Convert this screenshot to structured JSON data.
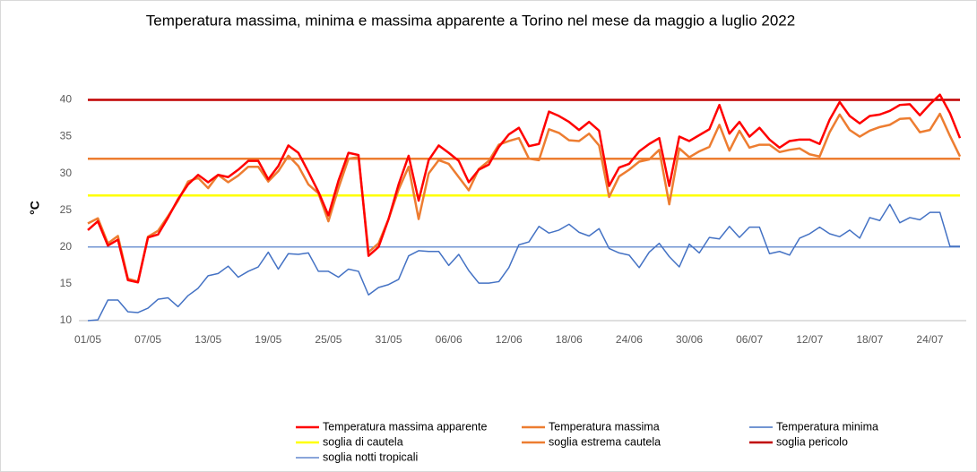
{
  "chart_data": {
    "type": "line",
    "title": "Temperatura massima, minima e massima apparente a Torino nel mese da maggio a luglio 2022",
    "y_label": "°C",
    "categories": [
      "01/05",
      null,
      null,
      null,
      null,
      null,
      "07/05",
      null,
      null,
      null,
      null,
      null,
      "13/05",
      null,
      null,
      null,
      null,
      null,
      "19/05",
      null,
      null,
      null,
      null,
      null,
      "25/05",
      null,
      null,
      null,
      null,
      null,
      "31/05",
      null,
      null,
      null,
      null,
      null,
      "06/06",
      null,
      null,
      null,
      null,
      null,
      "12/06",
      null,
      null,
      null,
      null,
      null,
      "18/06",
      null,
      null,
      null,
      null,
      null,
      "24/06",
      null,
      null,
      null,
      null,
      null,
      "30/06",
      null,
      null,
      null,
      null,
      null,
      "06/07",
      null,
      null,
      null,
      null,
      null,
      "12/07",
      null,
      null,
      null,
      null,
      null,
      "18/07",
      null,
      null,
      null,
      null,
      null,
      "24/07",
      null,
      null,
      null
    ],
    "ylim": [
      10,
      42
    ],
    "yticks": [
      10,
      15,
      20,
      25,
      30,
      35,
      40
    ],
    "grid": false,
    "series": [
      {
        "name": "Temperatura massima apparente",
        "color": "#ff0000",
        "width": 2.5,
        "values": [
          22.3,
          23.5,
          20.2,
          21,
          15.5,
          15.2,
          21.3,
          21.7,
          24,
          26.5,
          28.5,
          29.8,
          28.8,
          29.8,
          29.5,
          30.5,
          31.7,
          31.7,
          29.2,
          31,
          33.8,
          32.8,
          30.2,
          27.5,
          24.3,
          29,
          32.8,
          32.5,
          18.8,
          20,
          23.8,
          28.5,
          32.4,
          26.3,
          31.8,
          33.8,
          32.8,
          31.7,
          28.8,
          30.5,
          31.2,
          33.6,
          35.3,
          36.2,
          33.7,
          34,
          38.4,
          37.8,
          37,
          35.9,
          37,
          35.8,
          28.3,
          30.8,
          31.3,
          33,
          34,
          34.8,
          28.3,
          35,
          34.4,
          35.2,
          36,
          39.3,
          35.4,
          37,
          35,
          36.2,
          34.6,
          33.5,
          34.4,
          34.6,
          34.6,
          34,
          37.3,
          39.7,
          37.8,
          36.8,
          37.8,
          38,
          38.5,
          39.3,
          39.4,
          37.9,
          39.4,
          40.7,
          38.2,
          34.8
        ]
      },
      {
        "name": "Temperatura massima",
        "color": "#ed7d31",
        "width": 2.5,
        "values": [
          23.2,
          23.9,
          20.5,
          21.5,
          15.7,
          15.3,
          21.4,
          22.2,
          24.2,
          26.3,
          28.9,
          29.4,
          28,
          29.8,
          28.8,
          29.7,
          30.9,
          30.9,
          28.9,
          30.3,
          32.4,
          31,
          28.5,
          27.3,
          23.5,
          28,
          32,
          32.2,
          19.3,
          20.5,
          23.8,
          27.8,
          30.9,
          23.8,
          30,
          31.8,
          31.3,
          29.5,
          27.7,
          30.6,
          31.7,
          33.9,
          34.4,
          34.8,
          32,
          31.8,
          36,
          35.5,
          34.5,
          34.4,
          35.4,
          33.8,
          26.8,
          29.6,
          30.5,
          31.6,
          31.9,
          33.2,
          25.8,
          33.4,
          32.2,
          33,
          33.6,
          36.6,
          33.1,
          35.8,
          33.5,
          33.9,
          33.9,
          32.9,
          33.2,
          33.4,
          32.6,
          32.3,
          35.6,
          38,
          35.9,
          35,
          35.8,
          36.3,
          36.6,
          37.4,
          37.5,
          35.6,
          35.9,
          38.1,
          35.1,
          32.3
        ]
      },
      {
        "name": "Temperatura minima",
        "color": "#4472c4",
        "width": 1.5,
        "values": [
          10,
          10.1,
          12.8,
          12.8,
          11.2,
          11.1,
          11.7,
          12.9,
          13.1,
          11.9,
          13.4,
          14.4,
          16.1,
          16.4,
          17.4,
          15.9,
          16.7,
          17.3,
          19.3,
          17,
          19.1,
          19,
          19.2,
          16.7,
          16.7,
          15.9,
          17,
          16.7,
          13.5,
          14.5,
          14.9,
          15.6,
          18.8,
          19.5,
          19.4,
          19.4,
          17.5,
          19,
          16.8,
          15.1,
          15.1,
          15.3,
          17.2,
          20.3,
          20.7,
          22.8,
          21.9,
          22.3,
          23.1,
          22,
          21.5,
          22.5,
          19.8,
          19.2,
          18.9,
          17.2,
          19.3,
          20.5,
          18.7,
          17.3,
          20.4,
          19.2,
          21.3,
          21.1,
          22.8,
          21.3,
          22.7,
          22.7,
          19.1,
          19.4,
          18.9,
          21.2,
          21.8,
          22.7,
          21.8,
          21.4,
          22.3,
          21.2,
          24,
          23.6,
          25.8,
          23.3,
          24,
          23.7,
          24.7,
          24.7,
          20.1,
          20.1
        ]
      },
      {
        "name": "soglia di cautela",
        "color": "#ffff00",
        "width": 2.5,
        "value": 27
      },
      {
        "name": "soglia estrema cautela",
        "color": "#ed7d31",
        "width": 2.5,
        "value": 32
      },
      {
        "name": "soglia pericolo",
        "color": "#c00000",
        "width": 2.5,
        "value": 40
      },
      {
        "name": "soglia notti tropicali",
        "color": "#4472c4",
        "width": 1.2,
        "value": 20
      }
    ]
  }
}
